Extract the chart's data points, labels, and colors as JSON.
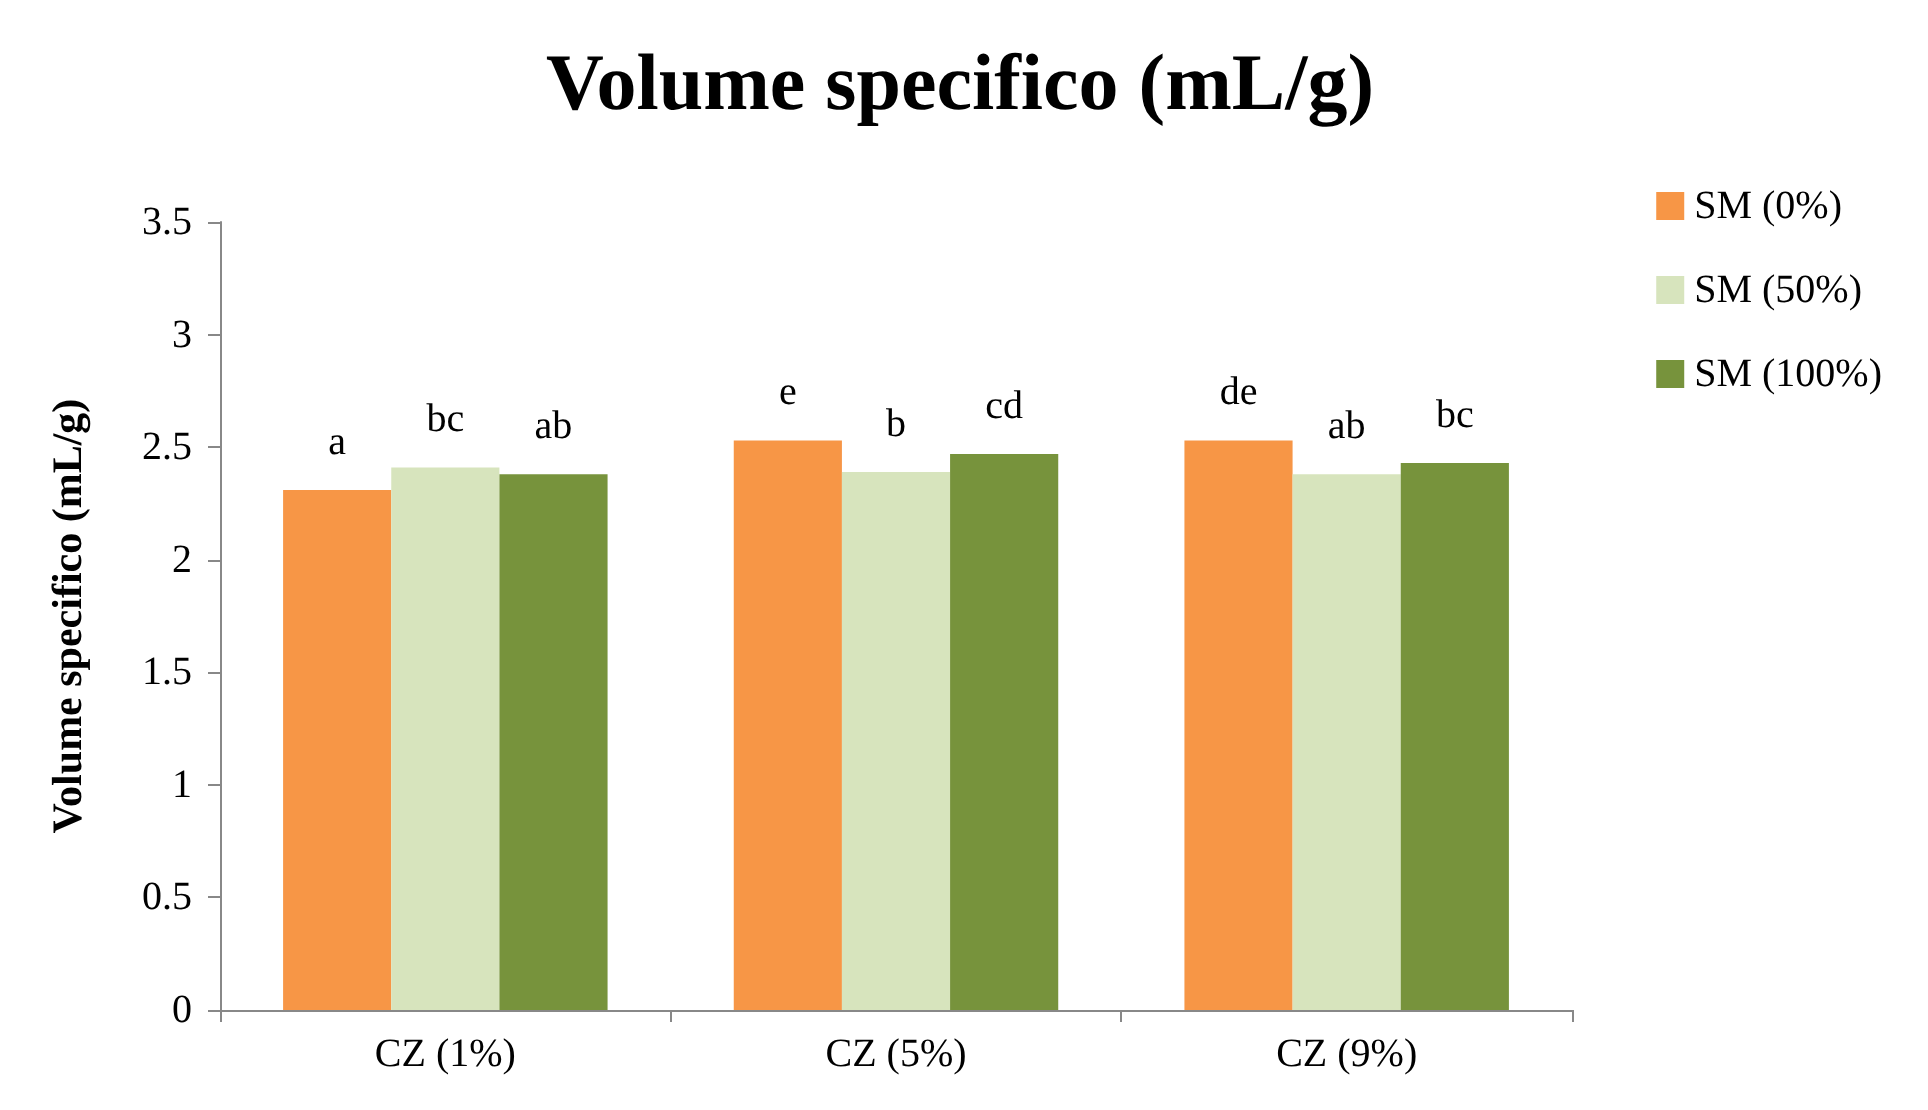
{
  "chart_data": {
    "type": "bar",
    "title": "Volume specifico (mL/g)",
    "ylabel": "Volume specifico (mL/g)",
    "categories": [
      "CZ (1%)",
      "CZ (5%)",
      "CZ (9%)"
    ],
    "series": [
      {
        "name": "SM (0%)",
        "color": "#f79646",
        "values": [
          2.31,
          2.53,
          2.53
        ],
        "value_labels": [
          "a",
          "e",
          "de"
        ]
      },
      {
        "name": "SM (50%)",
        "color": "#d7e4bd",
        "values": [
          2.41,
          2.39,
          2.38
        ],
        "value_labels": [
          "bc",
          "b",
          "ab"
        ]
      },
      {
        "name": "SM (100%)",
        "color": "#77933c",
        "values": [
          2.38,
          2.47,
          2.43
        ],
        "value_labels": [
          "ab",
          "cd",
          "bc"
        ]
      }
    ],
    "ylim": [
      0,
      3.5
    ],
    "yticks": [
      0,
      0.5,
      1,
      1.5,
      2,
      2.5,
      3,
      3.5
    ],
    "grid": false,
    "legend": "right"
  }
}
